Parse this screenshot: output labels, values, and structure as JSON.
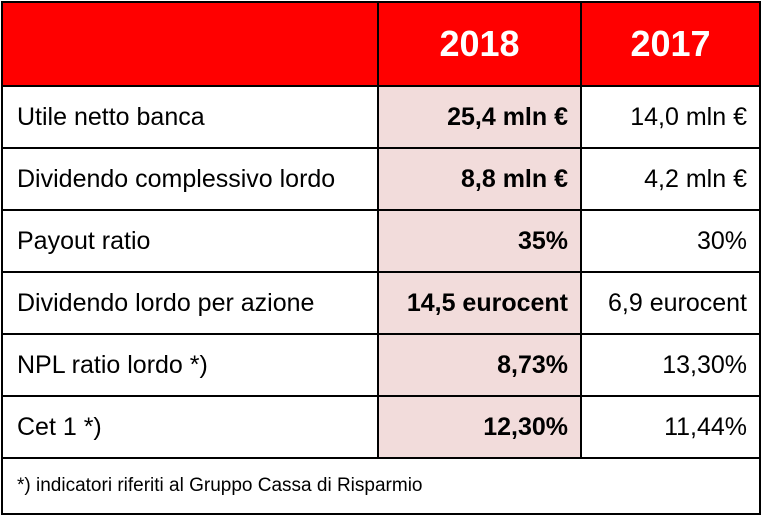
{
  "header": {
    "year_current": "2018",
    "year_previous": "2017"
  },
  "colors": {
    "header_bg": "#ff0000",
    "highlight_bg": "#f2dcdb"
  },
  "rows": [
    {
      "label": "Utile netto banca",
      "v2018": "25,4 mln €",
      "v2017": "14,0 mln €"
    },
    {
      "label": "Dividendo complessivo lordo",
      "v2018": "8,8 mln €",
      "v2017": "4,2 mln €"
    },
    {
      "label": "Payout ratio",
      "v2018": "35%",
      "v2017": "30%"
    },
    {
      "label": "Dividendo lordo per azione",
      "v2018": "14,5 eurocent",
      "v2017": "6,9 eurocent"
    },
    {
      "label": "NPL ratio lordo *)",
      "v2018": "8,73%",
      "v2017": "13,30%"
    },
    {
      "label": "Cet 1 *)",
      "v2018": "12,30%",
      "v2017": "11,44%"
    }
  ],
  "footnote": "*) indicatori riferiti al Gruppo Cassa di Risparmio"
}
